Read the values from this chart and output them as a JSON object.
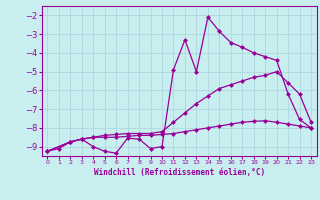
{
  "bg_color": "#c8eef0",
  "grid_color": "#aad4d8",
  "line_color": "#990099",
  "xlabel": "Windchill (Refroidissement éolien,°C)",
  "xlim": [
    -0.5,
    23.5
  ],
  "ylim": [
    -9.5,
    -1.5
  ],
  "xticks": [
    0,
    1,
    2,
    3,
    4,
    5,
    6,
    7,
    8,
    9,
    10,
    11,
    12,
    13,
    14,
    15,
    16,
    17,
    18,
    19,
    20,
    21,
    22,
    23
  ],
  "yticks": [
    -9,
    -8,
    -7,
    -6,
    -5,
    -4,
    -3,
    -2
  ],
  "line1_x": [
    0,
    1,
    2,
    3,
    4,
    5,
    6,
    7,
    8,
    9,
    10,
    11,
    12,
    13,
    14,
    15,
    16,
    17,
    18,
    19,
    20,
    21,
    22,
    23
  ],
  "line1_y": [
    -9.25,
    -9.1,
    -8.75,
    -8.6,
    -9.0,
    -9.25,
    -9.35,
    -8.55,
    -8.6,
    -9.1,
    -9.0,
    -4.9,
    -3.3,
    -5.0,
    -2.1,
    -2.85,
    -3.45,
    -3.7,
    -4.0,
    -4.2,
    -4.4,
    -6.2,
    -7.55,
    -8.0
  ],
  "line2_x": [
    0,
    2,
    3,
    4,
    5,
    6,
    7,
    8,
    9,
    10,
    11,
    12,
    13,
    14,
    15,
    16,
    17,
    18,
    19,
    20,
    21,
    22,
    23
  ],
  "line2_y": [
    -9.25,
    -8.75,
    -8.6,
    -8.5,
    -8.4,
    -8.35,
    -8.3,
    -8.3,
    -8.3,
    -8.2,
    -7.7,
    -7.2,
    -6.7,
    -6.3,
    -5.9,
    -5.7,
    -5.5,
    -5.3,
    -5.2,
    -5.0,
    -5.6,
    -6.2,
    -7.7
  ],
  "line3_x": [
    0,
    2,
    3,
    4,
    5,
    6,
    7,
    8,
    9,
    10,
    11,
    12,
    13,
    14,
    15,
    16,
    17,
    18,
    19,
    20,
    21,
    22,
    23
  ],
  "line3_y": [
    -9.25,
    -8.75,
    -8.6,
    -8.5,
    -8.5,
    -8.5,
    -8.45,
    -8.4,
    -8.4,
    -8.35,
    -8.3,
    -8.2,
    -8.1,
    -8.0,
    -7.9,
    -7.8,
    -7.7,
    -7.65,
    -7.62,
    -7.7,
    -7.8,
    -7.9,
    -8.0
  ],
  "marker_size": 2.5,
  "marker": "D"
}
